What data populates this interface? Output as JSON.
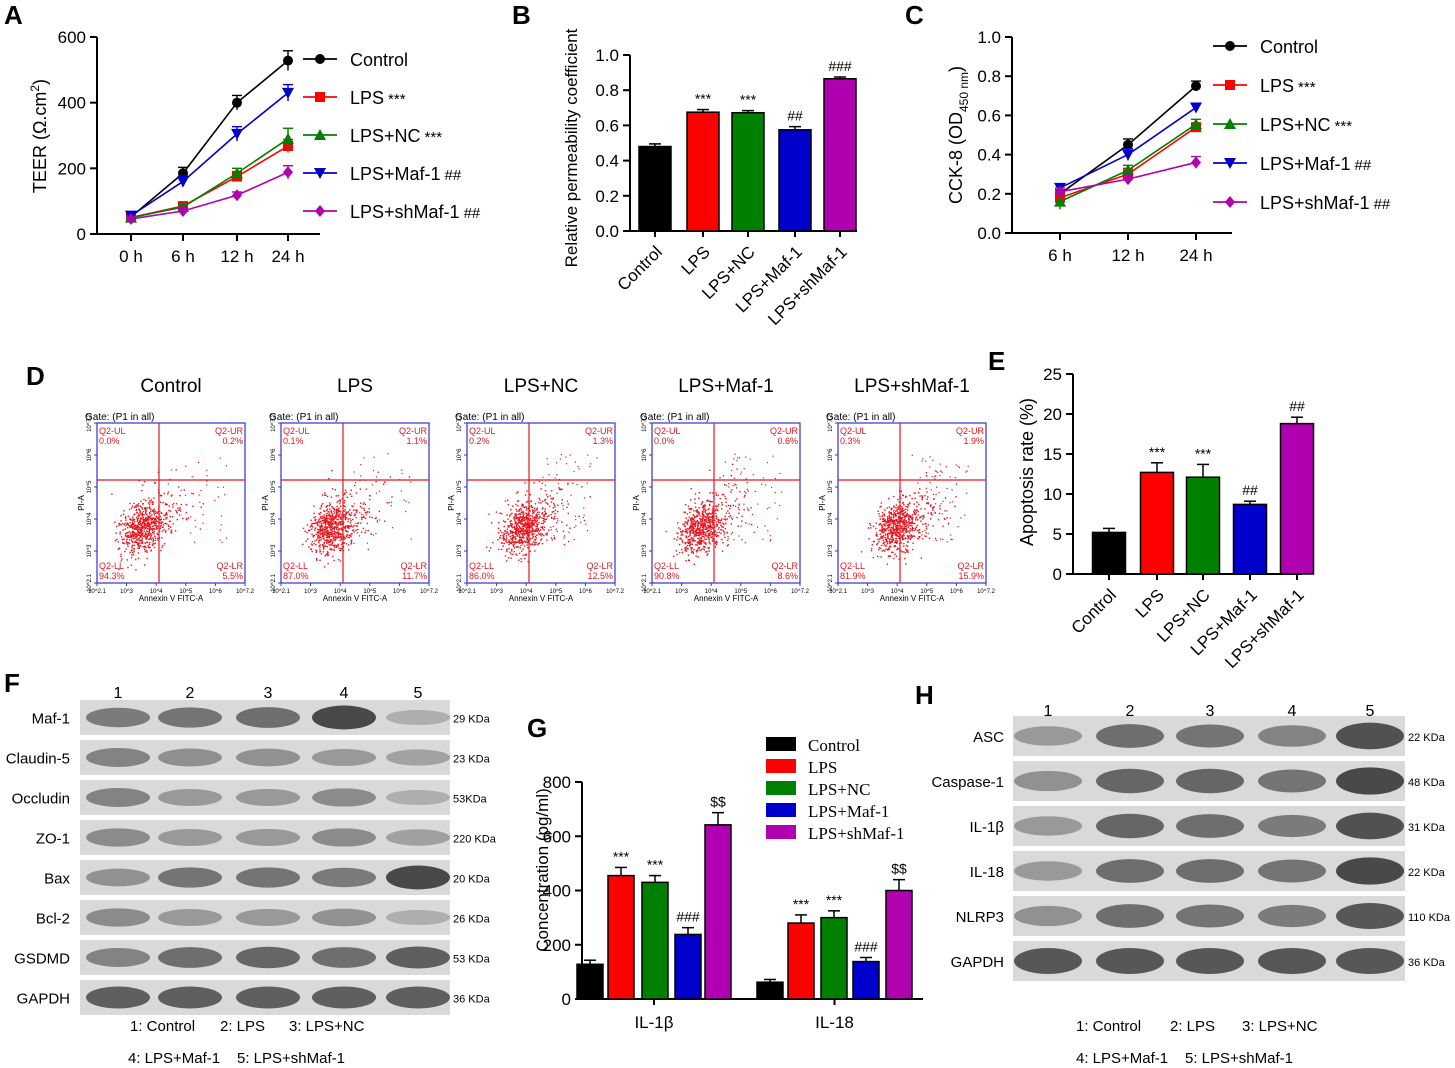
{
  "colors": {
    "control": "#000000",
    "lps": "#ff0000",
    "nc": "#008000",
    "maf": "#0000cc",
    "sh": "#b000b0",
    "flow": "#e8141e",
    "flowframe": "#3333cc"
  },
  "chart_data": [
    {
      "panel": "A",
      "type": "line",
      "ylabel": "TEER (Ω.cm²)",
      "ylabel_main": "TEER (Ω.cm",
      "ylabel_sup": "2",
      "ylabel_end": ")",
      "categories": [
        "0 h",
        "6 h",
        "12 h",
        "24 h"
      ],
      "ylim": [
        0,
        600
      ],
      "yticks": [
        "0",
        "200",
        "400",
        "600"
      ],
      "series": [
        {
          "name": "Control",
          "sig": "",
          "values": [
            52,
            185,
            400,
            528
          ],
          "err": [
            6,
            18,
            22,
            30
          ],
          "marker": "circle",
          "color": "#000000"
        },
        {
          "name": "LPS",
          "sig": "***",
          "values": [
            50,
            85,
            175,
            268
          ],
          "err": [
            5,
            8,
            15,
            20
          ],
          "marker": "square",
          "color": "#ff0000"
        },
        {
          "name": "LPS+NC",
          "sig": "***",
          "values": [
            50,
            82,
            185,
            290
          ],
          "err": [
            5,
            8,
            15,
            32
          ],
          "marker": "triangle-up",
          "color": "#008000"
        },
        {
          "name": "LPS+Maf-1",
          "sig": "##",
          "values": [
            56,
            160,
            305,
            430
          ],
          "err": [
            6,
            16,
            22,
            25
          ],
          "marker": "triangle-down",
          "color": "#0000cc"
        },
        {
          "name": "LPS+shMaf-1",
          "sig": "##",
          "values": [
            46,
            70,
            118,
            188
          ],
          "err": [
            5,
            8,
            10,
            20
          ],
          "marker": "diamond",
          "color": "#b000b0"
        }
      ]
    },
    {
      "panel": "B",
      "type": "bar",
      "ylabel": "Relative permeability coefficient",
      "categories": [
        "Control",
        "LPS",
        "LPS+NC",
        "LPS+Maf-1",
        "LPS+shMaf-1"
      ],
      "values": [
        0.48,
        0.675,
        0.672,
        0.575,
        0.865
      ],
      "err": [
        0.015,
        0.015,
        0.012,
        0.018,
        0.01
      ],
      "sig": [
        "",
        "***",
        "***",
        "##",
        "###"
      ],
      "ylim": [
        0,
        1.0
      ],
      "yticks": [
        "0.0",
        "0.2",
        "0.4",
        "0.6",
        "0.8",
        "1.0"
      ]
    },
    {
      "panel": "C",
      "type": "line",
      "ylabel_main": "CCK-8 (OD",
      "ylabel_sub": "450 nm",
      "ylabel_end": ")",
      "categories": [
        "6 h",
        "12 h",
        "24 h"
      ],
      "ylim": [
        0,
        1.0
      ],
      "yticks": [
        "0.0",
        "0.2",
        "0.4",
        "0.6",
        "0.8",
        "1.0"
      ],
      "series": [
        {
          "name": "Control",
          "sig": "",
          "values": [
            0.2,
            0.45,
            0.75
          ],
          "err": [
            0.02,
            0.03,
            0.025
          ],
          "marker": "circle",
          "color": "#000000"
        },
        {
          "name": "LPS",
          "sig": "***",
          "values": [
            0.18,
            0.3,
            0.54
          ],
          "err": [
            0.03,
            0.03,
            0.02
          ],
          "marker": "square",
          "color": "#ff0000"
        },
        {
          "name": "LPS+NC",
          "sig": "***",
          "values": [
            0.16,
            0.32,
            0.555
          ],
          "err": [
            0.04,
            0.025,
            0.025
          ],
          "marker": "triangle-up",
          "color": "#008000"
        },
        {
          "name": "LPS+Maf-1",
          "sig": "##",
          "values": [
            0.23,
            0.4,
            0.64
          ],
          "err": [
            0.02,
            0.03,
            0.02
          ],
          "marker": "triangle-down",
          "color": "#0000cc"
        },
        {
          "name": "LPS+shMaf-1",
          "sig": "##",
          "values": [
            0.21,
            0.275,
            0.36
          ],
          "err": [
            0.02,
            0.02,
            0.03
          ],
          "marker": "diamond",
          "color": "#b000b0"
        }
      ]
    },
    {
      "panel": "E",
      "type": "bar",
      "ylabel": "Apoptosis rate (%)",
      "categories": [
        "Control",
        "LPS",
        "LPS+NC",
        "LPS+Maf-1",
        "LPS+shMaf-1"
      ],
      "values": [
        5.2,
        12.7,
        12.1,
        8.7,
        18.8
      ],
      "err": [
        0.5,
        1.2,
        1.6,
        0.4,
        0.8
      ],
      "sig": [
        "",
        "***",
        "***",
        "##",
        "##"
      ],
      "ylim": [
        0,
        25
      ],
      "yticks": [
        "0",
        "5",
        "10",
        "15",
        "20",
        "25"
      ]
    },
    {
      "panel": "G",
      "type": "bar",
      "ylabel": "Concentration (pg/ml)",
      "categories": [
        "IL-1β",
        "IL-18"
      ],
      "series": [
        {
          "name": "Control",
          "values": [
            128,
            62
          ],
          "err": [
            15,
            10
          ],
          "sig": [
            "",
            ""
          ],
          "color": "#000000"
        },
        {
          "name": "LPS",
          "values": [
            455,
            280
          ],
          "err": [
            30,
            30
          ],
          "sig": [
            "***",
            "***"
          ],
          "color": "#ff0000"
        },
        {
          "name": "LPS+NC",
          "values": [
            430,
            300
          ],
          "err": [
            25,
            25
          ],
          "sig": [
            "***",
            "***"
          ],
          "color": "#008000"
        },
        {
          "name": "LPS+Maf-1",
          "values": [
            238,
            138
          ],
          "err": [
            25,
            15
          ],
          "sig": [
            "###",
            "###"
          ],
          "color": "#0000cc"
        },
        {
          "name": "LPS+shMaf-1",
          "values": [
            642,
            400
          ],
          "err": [
            45,
            40
          ],
          "sig": [
            "$$",
            "$$"
          ],
          "color": "#b000b0"
        }
      ],
      "ylim": [
        0,
        800
      ],
      "yticks": [
        "0",
        "200",
        "400",
        "600",
        "800"
      ]
    }
  ],
  "panels": {
    "A": "A",
    "B": "B",
    "C": "C",
    "D": "D",
    "E": "E",
    "F": "F",
    "G": "G",
    "H": "H"
  },
  "flow": {
    "titles": [
      "Control",
      "LPS",
      "LPS+NC",
      "LPS+Maf-1",
      "LPS+shMaf-1"
    ],
    "gate": "Gate: (P1 in all)",
    "xlabel": "Annexin V FITC-A",
    "ylabel": "PI-A",
    "q_ul": "Q2-UL",
    "q_ur": "Q2-UR",
    "q_ll": "Q2-LL",
    "q_lr": "Q2-LR",
    "plots": [
      {
        "ul": "0.0%",
        "ur": "0.2%",
        "ll": "94.3%",
        "lr": "5.5%"
      },
      {
        "ul": "0.1%",
        "ur": "1.1%",
        "ll": "87.0%",
        "lr": "11.7%"
      },
      {
        "ul": "0.2%",
        "ur": "1.3%",
        "ll": "86.0%",
        "lr": "12.5%"
      },
      {
        "ul": "0.0%",
        "ur": "0.6%",
        "ll": "90.8%",
        "lr": "8.6%"
      },
      {
        "ul": "0.3%",
        "ur": "1.9%",
        "ll": "81.9%",
        "lr": "15.9%"
      }
    ],
    "xticks": [
      "10^2.1",
      "10^3",
      "10^4",
      "10^5",
      "10^6",
      "10^7.2"
    ],
    "yticks": [
      "10^2.1",
      "10^3",
      "10^4",
      "10^5",
      "10^6",
      "10^7.2"
    ]
  },
  "western_f": {
    "lanes": [
      "1",
      "2",
      "3",
      "4",
      "5"
    ],
    "rows": [
      {
        "label": "Maf-1",
        "kda": "29 KDa",
        "intensity": [
          0.55,
          0.6,
          0.65,
          0.9,
          0.2
        ]
      },
      {
        "label": "Claudin-5",
        "kda": "23 KDa",
        "intensity": [
          0.5,
          0.42,
          0.4,
          0.35,
          0.28
        ]
      },
      {
        "label": "Occludin",
        "kda": "53KDa",
        "intensity": [
          0.5,
          0.35,
          0.35,
          0.45,
          0.2
        ]
      },
      {
        "label": "ZO-1",
        "kda": "220 KDa",
        "intensity": [
          0.45,
          0.35,
          0.35,
          0.45,
          0.3
        ]
      },
      {
        "label": "Bax",
        "kda": "20 KDa",
        "intensity": [
          0.4,
          0.6,
          0.6,
          0.55,
          0.9
        ]
      },
      {
        "label": "Bcl-2",
        "kda": "26 KDa",
        "intensity": [
          0.45,
          0.35,
          0.35,
          0.4,
          0.2
        ]
      },
      {
        "label": "GSDMD",
        "kda": "53 KDa",
        "intensity": [
          0.5,
          0.65,
          0.7,
          0.65,
          0.75
        ]
      },
      {
        "label": "GAPDH",
        "kda": "36 KDa",
        "intensity": [
          0.75,
          0.75,
          0.75,
          0.75,
          0.75
        ]
      }
    ],
    "legend1": "1: Control",
    "legend2": "2: LPS",
    "legend3": "3: LPS+NC",
    "legend4": "4: LPS+Maf-1",
    "legend5": "5: LPS+shMaf-1"
  },
  "western_h": {
    "lanes": [
      "1",
      "2",
      "3",
      "4",
      "5"
    ],
    "rows": [
      {
        "label": "ASC",
        "kda": "22 KDa",
        "intensity": [
          0.35,
          0.65,
          0.6,
          0.5,
          0.85
        ]
      },
      {
        "label": "Caspase-1",
        "kda": "48 KDa",
        "intensity": [
          0.4,
          0.7,
          0.7,
          0.6,
          0.9
        ]
      },
      {
        "label": "IL-1β",
        "kda": "31 KDa",
        "intensity": [
          0.35,
          0.7,
          0.65,
          0.55,
          0.85
        ]
      },
      {
        "label": "IL-18",
        "kda": "22 KDa",
        "intensity": [
          0.35,
          0.65,
          0.65,
          0.6,
          0.9
        ]
      },
      {
        "label": "NLRP3",
        "kda": "110 KDa",
        "intensity": [
          0.4,
          0.65,
          0.6,
          0.55,
          0.8
        ]
      },
      {
        "label": "GAPDH",
        "kda": "36 KDa",
        "intensity": [
          0.8,
          0.8,
          0.8,
          0.8,
          0.8
        ]
      }
    ],
    "legend1": "1: Control",
    "legend2": "2: LPS",
    "legend3": "3: LPS+NC",
    "legend4": "4: LPS+Maf-1",
    "legend5": "5: LPS+shMaf-1"
  }
}
